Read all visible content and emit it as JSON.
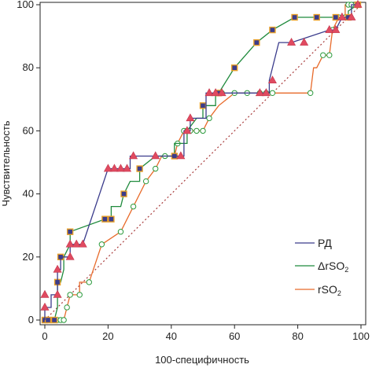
{
  "chart_data": {
    "type": "line",
    "title": "",
    "xlabel": "100-специфичность",
    "ylabel": "Чувствительность",
    "xlim": [
      0,
      100
    ],
    "ylim": [
      0,
      100
    ],
    "xticks": [
      0,
      20,
      40,
      60,
      80,
      100
    ],
    "yticks": [
      0,
      20,
      40,
      60,
      80,
      100
    ],
    "grid": false,
    "legend": "bottom-right",
    "reference_line": {
      "x": [
        0,
        100
      ],
      "y": [
        0,
        100
      ],
      "color": "#a83a3a",
      "style": "dotted"
    },
    "series": [
      {
        "name": "РД",
        "legend_main": "РД",
        "legend_sub": "",
        "color": "#3b3c8c",
        "marker": "triangle",
        "marker_fill": "#e04a60",
        "x": [
          0,
          0,
          2,
          2,
          4,
          4,
          5,
          5,
          6,
          6,
          8,
          8,
          10,
          12,
          20,
          20,
          22,
          24,
          26,
          27,
          27,
          35,
          35,
          43,
          43,
          44,
          44,
          46,
          46,
          51,
          51,
          55,
          56,
          64,
          64,
          68,
          70,
          70,
          71,
          71,
          74,
          76,
          76,
          78,
          90,
          92,
          92,
          94,
          97,
          97,
          99
        ],
        "y": [
          0,
          4,
          4,
          8,
          8,
          16,
          16,
          20,
          20,
          20,
          20,
          24,
          24,
          24,
          48,
          48,
          48,
          48,
          48,
          48,
          52,
          52,
          52,
          52,
          52,
          52,
          60,
          60,
          64,
          64,
          72,
          72,
          72,
          72,
          72,
          72,
          72,
          72,
          72,
          76,
          88,
          88,
          88,
          88,
          92,
          92,
          92,
          96,
          96,
          100,
          100
        ],
        "marker_x": [
          0,
          0,
          4,
          4,
          8,
          8,
          10,
          12,
          20,
          22,
          24,
          26,
          28,
          35,
          43,
          45,
          46,
          52,
          54,
          56,
          68,
          70,
          72,
          78,
          82,
          90,
          92,
          94,
          97,
          99
        ],
        "marker_y": [
          4,
          8,
          8,
          16,
          20,
          24,
          24,
          24,
          48,
          48,
          48,
          48,
          52,
          52,
          52,
          60,
          64,
          72,
          72,
          72,
          72,
          72,
          76,
          88,
          88,
          92,
          92,
          96,
          96,
          100
        ]
      },
      {
        "name": "ΔrSO2",
        "legend_main": "ΔrSO",
        "legend_sub": "2",
        "color": "#1f8a3c",
        "marker": "square",
        "marker_fill": "#e8a02a",
        "x": [
          0,
          1,
          3,
          4,
          4,
          5,
          6,
          6,
          8,
          8,
          19,
          21,
          21,
          24,
          25,
          27,
          30,
          30,
          35,
          40,
          41,
          41,
          45,
          45,
          48,
          50,
          50,
          54,
          54,
          55,
          60,
          60,
          67,
          72,
          72,
          79,
          86,
          86,
          92,
          96,
          96,
          99,
          100
        ],
        "y": [
          0,
          0,
          0,
          4,
          12,
          12,
          16,
          20,
          24,
          28,
          32,
          32,
          36,
          36,
          40,
          44,
          44,
          48,
          52,
          52,
          52,
          56,
          56,
          60,
          64,
          64,
          68,
          68,
          72,
          72,
          80,
          80,
          88,
          92,
          92,
          96,
          96,
          96,
          96,
          96,
          98,
          100,
          100
        ],
        "marker_x": [
          0,
          1,
          3,
          4,
          5,
          8,
          19,
          21,
          25,
          30,
          41,
          50,
          55,
          60,
          67,
          72,
          79,
          86,
          92,
          96,
          99
        ],
        "marker_y": [
          0,
          0,
          0,
          12,
          20,
          28,
          32,
          32,
          40,
          48,
          52,
          68,
          72,
          80,
          88,
          92,
          96,
          96,
          96,
          96,
          100
        ]
      },
      {
        "name": "rSO2",
        "legend_main": "rSO",
        "legend_sub": "2",
        "color": "#e86a2a",
        "marker": "circle",
        "marker_fill": "#ffffff",
        "marker_stroke": "#2a9a3c",
        "x": [
          0,
          1,
          2,
          3,
          4,
          5,
          6,
          7,
          8,
          11,
          11,
          14,
          18,
          18,
          24,
          24,
          28,
          28,
          32,
          32,
          35,
          37,
          38,
          41,
          42,
          42,
          44,
          44,
          46,
          47,
          48,
          50,
          52,
          52,
          55,
          60,
          65,
          68,
          70,
          72,
          73,
          84,
          85,
          86,
          88,
          88,
          89,
          90,
          91,
          91,
          93,
          95,
          95,
          96,
          96,
          98,
          99,
          100
        ],
        "y": [
          0,
          0,
          0,
          0,
          0,
          0,
          0,
          4,
          8,
          8,
          12,
          12,
          24,
          24,
          28,
          28,
          36,
          36,
          44,
          44,
          48,
          52,
          52,
          52,
          56,
          56,
          60,
          60,
          60,
          60,
          60,
          60,
          64,
          64,
          68,
          72,
          72,
          72,
          72,
          72,
          72,
          72,
          80,
          80,
          84,
          84,
          84,
          84,
          92,
          92,
          96,
          96,
          100,
          100,
          100,
          100,
          100,
          100
        ],
        "marker_x": [
          0,
          2,
          4,
          5,
          6,
          7,
          8,
          11,
          14,
          18,
          24,
          28,
          32,
          35,
          38,
          42,
          44,
          45,
          46,
          48,
          50,
          52,
          56,
          60,
          64,
          68,
          70,
          72,
          84,
          88,
          90,
          91,
          93,
          95,
          96,
          97,
          99
        ],
        "marker_y": [
          0,
          0,
          0,
          0,
          0,
          4,
          8,
          8,
          12,
          24,
          28,
          36,
          44,
          48,
          52,
          56,
          60,
          60,
          60,
          60,
          60,
          64,
          72,
          72,
          72,
          72,
          72,
          72,
          72,
          84,
          84,
          92,
          96,
          96,
          100,
          100,
          100
        ]
      }
    ]
  }
}
